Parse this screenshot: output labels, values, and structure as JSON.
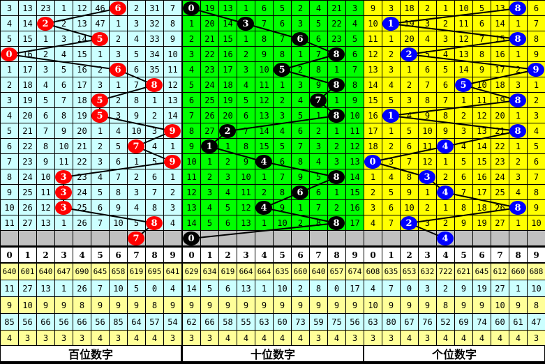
{
  "colors": {
    "grey": "#c0c0c0",
    "stat_yellow": "#ffff99",
    "stat_cyan": "#ccffff",
    "header": "#ffffff"
  },
  "digits": [
    "0",
    "1",
    "2",
    "3",
    "4",
    "5",
    "6",
    "7",
    "8",
    "9"
  ],
  "panels": [
    {
      "title": "百位数字",
      "bg": "#ccffff",
      "ball_color": "#ff0000",
      "rows": [
        {
          "cells": [
            3,
            13,
            23,
            1,
            12,
            46,
            6,
            2,
            31,
            7
          ],
          "hit": 6
        },
        {
          "cells": [
            4,
            14,
            2,
            2,
            13,
            47,
            1,
            3,
            32,
            8
          ],
          "hit": 2
        },
        {
          "cells": [
            5,
            15,
            1,
            3,
            14,
            5,
            2,
            4,
            33,
            9
          ],
          "hit": 5
        },
        {
          "cells": [
            0,
            16,
            2,
            4,
            15,
            1,
            3,
            5,
            34,
            10
          ],
          "hit": 0
        },
        {
          "cells": [
            1,
            17,
            3,
            5,
            16,
            2,
            6,
            6,
            35,
            11
          ],
          "hit": 6
        },
        {
          "cells": [
            2,
            18,
            4,
            6,
            17,
            3,
            1,
            7,
            8,
            12
          ],
          "hit": 8
        },
        {
          "cells": [
            3,
            19,
            5,
            7,
            18,
            5,
            2,
            8,
            1,
            13
          ],
          "hit": 5
        },
        {
          "cells": [
            4,
            20,
            6,
            8,
            19,
            5,
            3,
            9,
            2,
            14
          ],
          "hit": 5
        },
        {
          "cells": [
            5,
            21,
            7,
            9,
            20,
            1,
            4,
            10,
            3,
            9
          ],
          "hit": 9
        },
        {
          "cells": [
            6,
            22,
            8,
            10,
            21,
            2,
            5,
            7,
            4,
            1
          ],
          "hit": 7
        },
        {
          "cells": [
            7,
            23,
            9,
            11,
            22,
            3,
            6,
            1,
            5,
            9
          ],
          "hit": 9
        },
        {
          "cells": [
            8,
            24,
            10,
            3,
            23,
            4,
            7,
            2,
            6,
            1
          ],
          "hit": 3
        },
        {
          "cells": [
            9,
            25,
            11,
            3,
            24,
            5,
            8,
            3,
            7,
            2
          ],
          "hit": 3
        },
        {
          "cells": [
            10,
            26,
            12,
            3,
            25,
            6,
            9,
            4,
            8,
            3
          ],
          "hit": 3
        },
        {
          "cells": [
            11,
            27,
            13,
            1,
            26,
            7,
            10,
            5,
            8,
            4
          ],
          "hit": 8
        }
      ],
      "next_hit": 7,
      "stats": [
        [
          640,
          601,
          640,
          647,
          690,
          645,
          658,
          619,
          695,
          641
        ],
        [
          11,
          27,
          13,
          1,
          26,
          7,
          10,
          5,
          0,
          4
        ],
        [
          9,
          10,
          9,
          9,
          8,
          9,
          9,
          9,
          8,
          9
        ],
        [
          85,
          56,
          66,
          56,
          66,
          56,
          85,
          64,
          57,
          54
        ],
        [
          4,
          3,
          3,
          3,
          3,
          4,
          3,
          4,
          4,
          3
        ]
      ]
    },
    {
      "title": "十位数字",
      "bg": "#00ff00",
      "ball_color": "#000000",
      "rows": [
        {
          "cells": [
            0,
            19,
            13,
            1,
            6,
            5,
            2,
            4,
            21,
            3
          ],
          "hit": 0
        },
        {
          "cells": [
            1,
            20,
            14,
            3,
            7,
            6,
            3,
            5,
            22,
            4
          ],
          "hit": 3
        },
        {
          "cells": [
            2,
            21,
            15,
            1,
            8,
            7,
            6,
            6,
            23,
            5
          ],
          "hit": 6
        },
        {
          "cells": [
            3,
            22,
            16,
            2,
            9,
            8,
            1,
            7,
            8,
            6
          ],
          "hit": 8
        },
        {
          "cells": [
            4,
            23,
            17,
            3,
            10,
            5,
            2,
            8,
            1,
            7
          ],
          "hit": 5
        },
        {
          "cells": [
            5,
            24,
            18,
            4,
            11,
            1,
            3,
            9,
            8,
            8
          ],
          "hit": 8
        },
        {
          "cells": [
            6,
            25,
            19,
            5,
            12,
            2,
            4,
            7,
            1,
            9
          ],
          "hit": 7
        },
        {
          "cells": [
            7,
            26,
            20,
            6,
            13,
            3,
            5,
            1,
            8,
            10
          ],
          "hit": 8
        },
        {
          "cells": [
            8,
            27,
            2,
            7,
            14,
            4,
            6,
            2,
            1,
            11
          ],
          "hit": 2
        },
        {
          "cells": [
            9,
            1,
            1,
            8,
            15,
            5,
            7,
            3,
            2,
            12
          ],
          "hit": 1
        },
        {
          "cells": [
            10,
            1,
            2,
            9,
            4,
            6,
            8,
            4,
            3,
            13
          ],
          "hit": 4
        },
        {
          "cells": [
            11,
            2,
            3,
            10,
            1,
            7,
            9,
            5,
            8,
            14
          ],
          "hit": 8
        },
        {
          "cells": [
            12,
            3,
            4,
            11,
            2,
            8,
            6,
            6,
            1,
            15
          ],
          "hit": 6
        },
        {
          "cells": [
            13,
            4,
            5,
            12,
            4,
            9,
            1,
            7,
            2,
            16
          ],
          "hit": 4
        },
        {
          "cells": [
            14,
            5,
            6,
            13,
            1,
            10,
            2,
            8,
            8,
            17
          ],
          "hit": 8
        }
      ],
      "next_hit": 0,
      "stats": [
        [
          629,
          634,
          619,
          664,
          664,
          635,
          660,
          640,
          657,
          674
        ],
        [
          14,
          5,
          6,
          13,
          1,
          10,
          2,
          8,
          0,
          17
        ],
        [
          9,
          9,
          9,
          9,
          9,
          9,
          9,
          9,
          9,
          9
        ],
        [
          62,
          66,
          58,
          55,
          63,
          60,
          73,
          59,
          75,
          56
        ],
        [
          3,
          3,
          4,
          4,
          4,
          4,
          4,
          3,
          4,
          3
        ]
      ]
    },
    {
      "title": "个位数字",
      "bg": "#ffff00",
      "ball_color": "#0000ff",
      "rows": [
        {
          "cells": [
            9,
            3,
            18,
            2,
            1,
            10,
            5,
            13,
            8,
            6
          ],
          "hit": 8
        },
        {
          "cells": [
            10,
            1,
            19,
            3,
            2,
            11,
            6,
            14,
            1,
            7
          ],
          "hit": 1
        },
        {
          "cells": [
            11,
            1,
            20,
            4,
            3,
            12,
            7,
            15,
            8,
            8
          ],
          "hit": 8
        },
        {
          "cells": [
            12,
            2,
            2,
            5,
            4,
            13,
            8,
            16,
            1,
            9
          ],
          "hit": 2
        },
        {
          "cells": [
            13,
            3,
            1,
            6,
            5,
            14,
            9,
            17,
            2,
            9
          ],
          "hit": 9
        },
        {
          "cells": [
            14,
            4,
            2,
            7,
            6,
            5,
            10,
            18,
            3,
            1
          ],
          "hit": 5
        },
        {
          "cells": [
            15,
            5,
            3,
            8,
            7,
            1,
            11,
            19,
            8,
            2
          ],
          "hit": 8
        },
        {
          "cells": [
            16,
            1,
            4,
            9,
            8,
            2,
            12,
            20,
            1,
            3
          ],
          "hit": 1
        },
        {
          "cells": [
            17,
            1,
            5,
            10,
            9,
            3,
            13,
            21,
            8,
            4
          ],
          "hit": 8
        },
        {
          "cells": [
            18,
            2,
            6,
            11,
            4,
            4,
            14,
            22,
            1,
            5
          ],
          "hit": 4
        },
        {
          "cells": [
            0,
            3,
            7,
            12,
            1,
            5,
            15,
            23,
            2,
            6
          ],
          "hit": 0
        },
        {
          "cells": [
            1,
            4,
            8,
            3,
            2,
            6,
            16,
            24,
            3,
            7
          ],
          "hit": 3
        },
        {
          "cells": [
            2,
            5,
            9,
            1,
            4,
            7,
            17,
            25,
            4,
            8
          ],
          "hit": 4
        },
        {
          "cells": [
            3,
            6,
            10,
            2,
            1,
            8,
            18,
            26,
            8,
            9
          ],
          "hit": 8
        },
        {
          "cells": [
            4,
            7,
            2,
            3,
            2,
            9,
            19,
            27,
            1,
            10
          ],
          "hit": 2
        }
      ],
      "next_hit": 4,
      "stats": [
        [
          608,
          635,
          653,
          632,
          722,
          621,
          645,
          612,
          660,
          688
        ],
        [
          4,
          7,
          0,
          3,
          2,
          9,
          19,
          27,
          1,
          10
        ],
        [
          10,
          9,
          9,
          9,
          8,
          9,
          9,
          10,
          9,
          8
        ],
        [
          63,
          80,
          67,
          76,
          52,
          69,
          74,
          60,
          61,
          47
        ],
        [
          3,
          3,
          4,
          3,
          4,
          4,
          4,
          4,
          4,
          3
        ]
      ]
    }
  ]
}
